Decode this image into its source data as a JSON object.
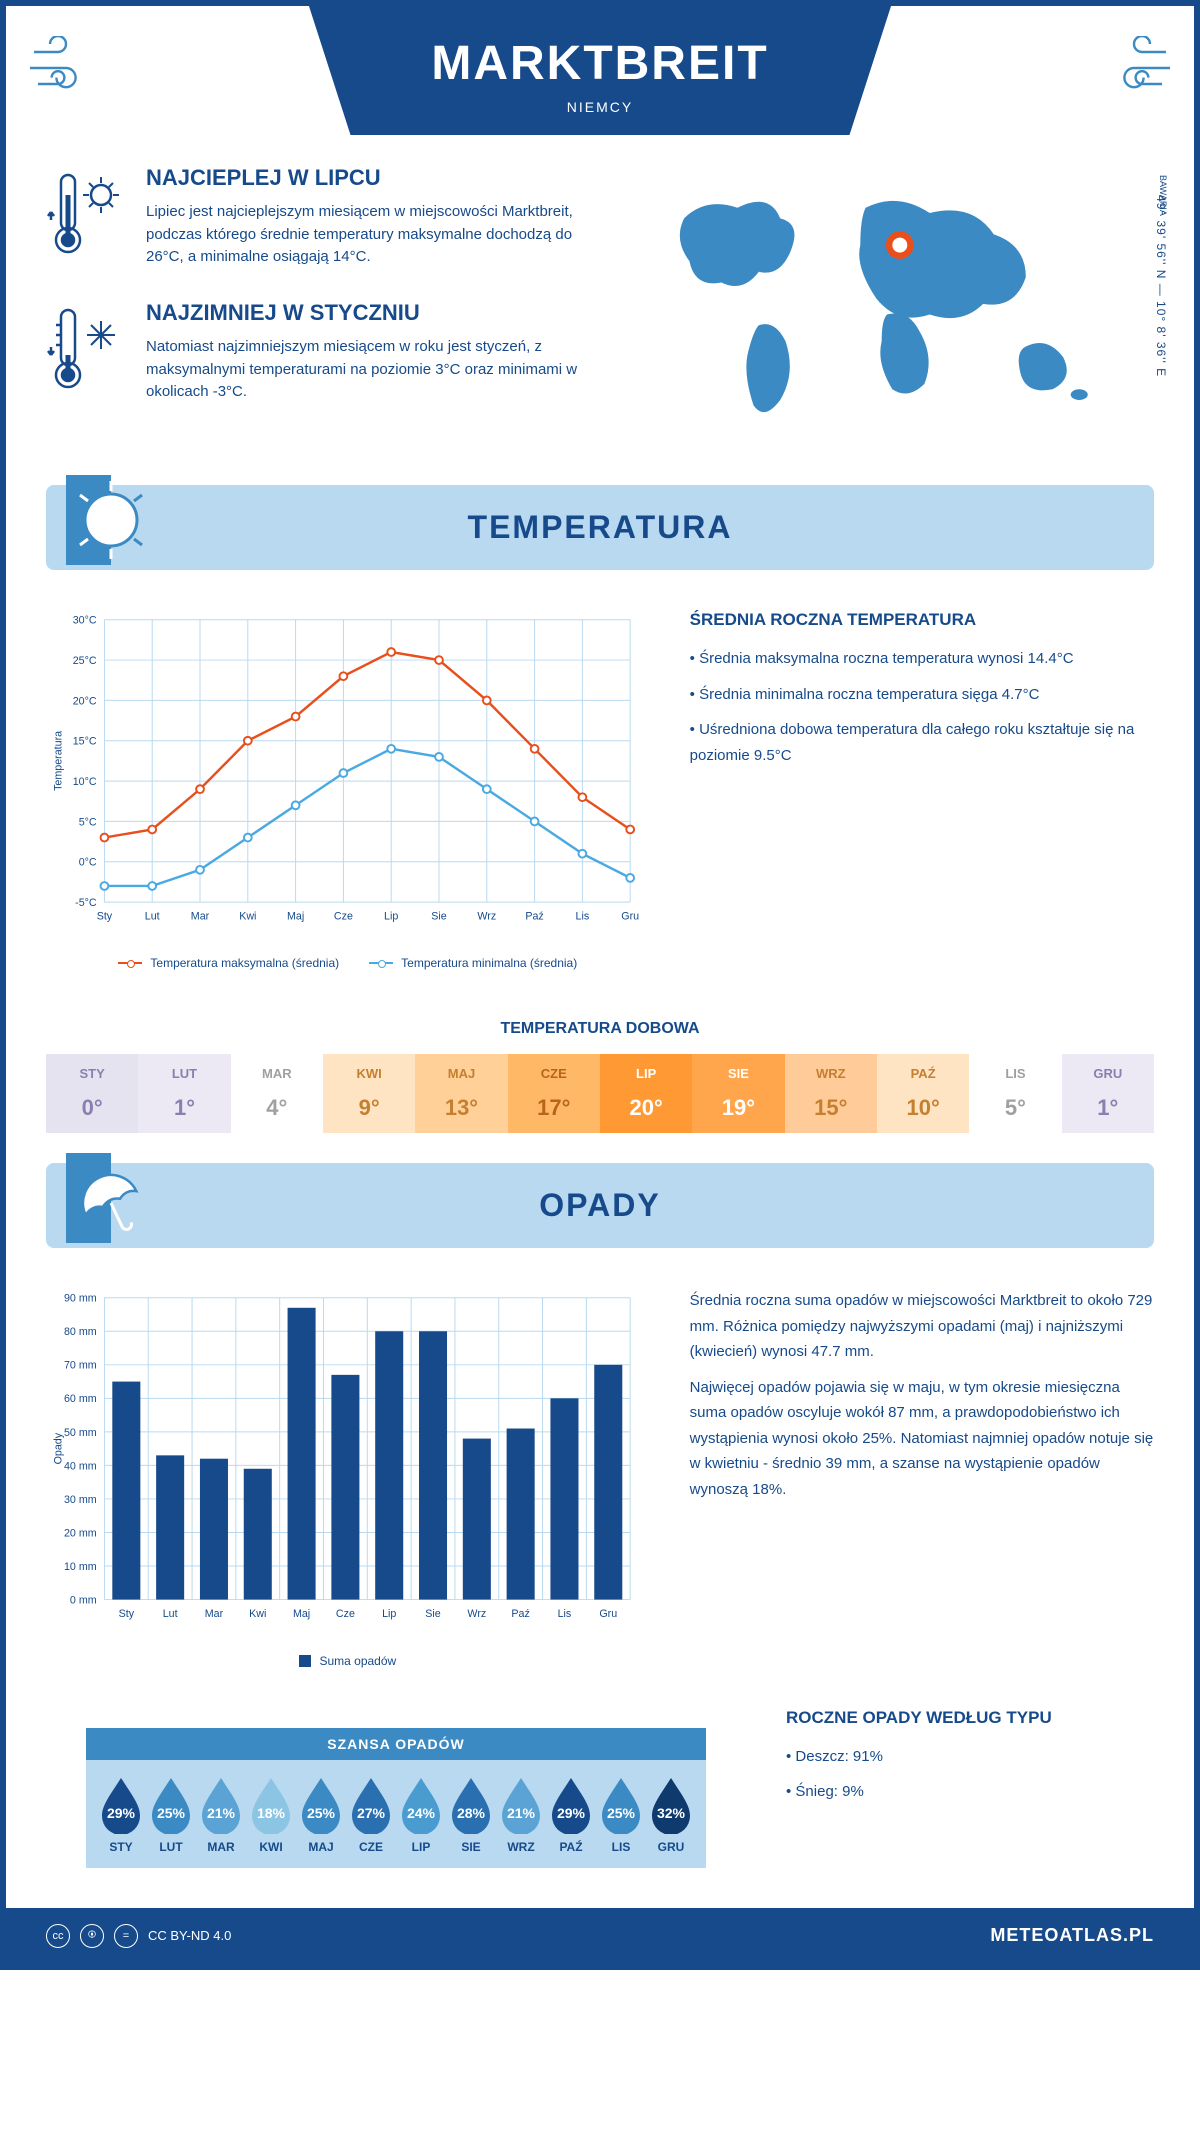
{
  "header": {
    "city": "MARKTBREIT",
    "country": "NIEMCY"
  },
  "coords": "49° 39' 56'' N — 10° 8' 36'' E",
  "region": "BAWARIA",
  "facts": {
    "warmest": {
      "title": "NAJCIEPLEJ W LIPCU",
      "text": "Lipiec jest najcieplejszym miesiącem w miejscowości Marktbreit, podczas którego średnie temperatury maksymalne dochodzą do 26°C, a minimalne osiągają 14°C."
    },
    "coldest": {
      "title": "NAJZIMNIEJ W STYCZNIU",
      "text": "Natomiast najzimniejszym miesiącem w roku jest styczeń, z maksymalnymi temperaturami na poziomie 3°C oraz minimami w okolicach -3°C."
    }
  },
  "temperature": {
    "section_title": "TEMPERATURA",
    "annual_title": "ŚREDNIA ROCZNA TEMPERATURA",
    "annual_facts": [
      "Średnia maksymalna roczna temperatura wynosi 14.4°C",
      "Średnia minimalna roczna temperatura sięga 4.7°C",
      "Uśredniona dobowa temperatura dla całego roku kształtuje się na poziomie 9.5°C"
    ],
    "chart": {
      "type": "line",
      "months": [
        "Sty",
        "Lut",
        "Mar",
        "Kwi",
        "Maj",
        "Cze",
        "Lip",
        "Sie",
        "Wrz",
        "Paź",
        "Lis",
        "Gru"
      ],
      "max": [
        3,
        4,
        9,
        15,
        18,
        23,
        26,
        25,
        20,
        14,
        8,
        4
      ],
      "min": [
        -3,
        -3,
        -1,
        3,
        7,
        11,
        14,
        13,
        9,
        5,
        1,
        -2
      ],
      "max_color": "#e94e1b",
      "min_color": "#4aa9e2",
      "ylabel": "Temperatura",
      "ylim": [
        -5,
        30
      ],
      "ytick_step": 5,
      "grid_color": "#b8d9f0",
      "legend_max": "Temperatura maksymalna (średnia)",
      "legend_min": "Temperatura minimalna (średnia)"
    },
    "daily": {
      "title": "TEMPERATURA DOBOWA",
      "months": [
        "STY",
        "LUT",
        "MAR",
        "KWI",
        "MAJ",
        "CZE",
        "LIP",
        "SIE",
        "WRZ",
        "PAŹ",
        "LIS",
        "GRU"
      ],
      "values": [
        "0°",
        "1°",
        "4°",
        "9°",
        "13°",
        "17°",
        "20°",
        "19°",
        "15°",
        "10°",
        "5°",
        "1°"
      ],
      "bg_colors": [
        "#e6e3f0",
        "#ede9f4",
        "#ffffff",
        "#ffe4c4",
        "#ffd199",
        "#ffb866",
        "#ff9933",
        "#ffa64d",
        "#ffcc99",
        "#ffe4c4",
        "#ffffff",
        "#ede9f4"
      ],
      "text_colors": [
        "#8a7fb0",
        "#8a7fb0",
        "#a0a0a0",
        "#c47f2f",
        "#c47f2f",
        "#b8651a",
        "#ffffff",
        "#ffffff",
        "#c47f2f",
        "#c47f2f",
        "#a0a0a0",
        "#8a7fb0"
      ]
    }
  },
  "precip": {
    "section_title": "OPADY",
    "chart": {
      "type": "bar",
      "months": [
        "Sty",
        "Lut",
        "Mar",
        "Kwi",
        "Maj",
        "Cze",
        "Lip",
        "Sie",
        "Wrz",
        "Paź",
        "Lis",
        "Gru"
      ],
      "values": [
        65,
        43,
        42,
        39,
        87,
        67,
        80,
        80,
        48,
        51,
        60,
        70
      ],
      "bar_color": "#164a8a",
      "ylabel": "Opady",
      "ylim": [
        0,
        90
      ],
      "ytick_step": 10,
      "grid_color": "#b8d9f0",
      "legend": "Suma opadów"
    },
    "text1": "Średnia roczna suma opadów w miejscowości Marktbreit to około 729 mm. Różnica pomiędzy najwyższymi opadami (maj) i najniższymi (kwiecień) wynosi 47.7 mm.",
    "text2": "Najwięcej opadów pojawia się w maju, w tym okresie miesięczna suma opadów oscyluje wokół 87 mm, a prawdopodobieństwo ich wystąpienia wynosi około 25%. Natomiast najmniej opadów notuje się w kwietniu - średnio 39 mm, a szanse na wystąpienie opadów wynoszą 18%.",
    "chance": {
      "title": "SZANSA OPADÓW",
      "months": [
        "STY",
        "LUT",
        "MAR",
        "KWI",
        "MAJ",
        "CZE",
        "LIP",
        "SIE",
        "WRZ",
        "PAŹ",
        "LIS",
        "GRU"
      ],
      "values": [
        "29%",
        "25%",
        "21%",
        "18%",
        "25%",
        "27%",
        "24%",
        "28%",
        "21%",
        "29%",
        "25%",
        "32%"
      ],
      "drop_colors": [
        "#164a8a",
        "#3b8ac4",
        "#5ba3d4",
        "#8cc5e4",
        "#3b8ac4",
        "#2a70b0",
        "#4a9cd0",
        "#2a70b0",
        "#5ba3d4",
        "#164a8a",
        "#3b8ac4",
        "#0f3a6e"
      ]
    },
    "by_type": {
      "title": "ROCZNE OPADY WEDŁUG TYPU",
      "rain": "Deszcz: 91%",
      "snow": "Śnieg: 9%"
    }
  },
  "footer": {
    "license": "CC BY-ND 4.0",
    "site": "METEOATLAS.PL"
  }
}
